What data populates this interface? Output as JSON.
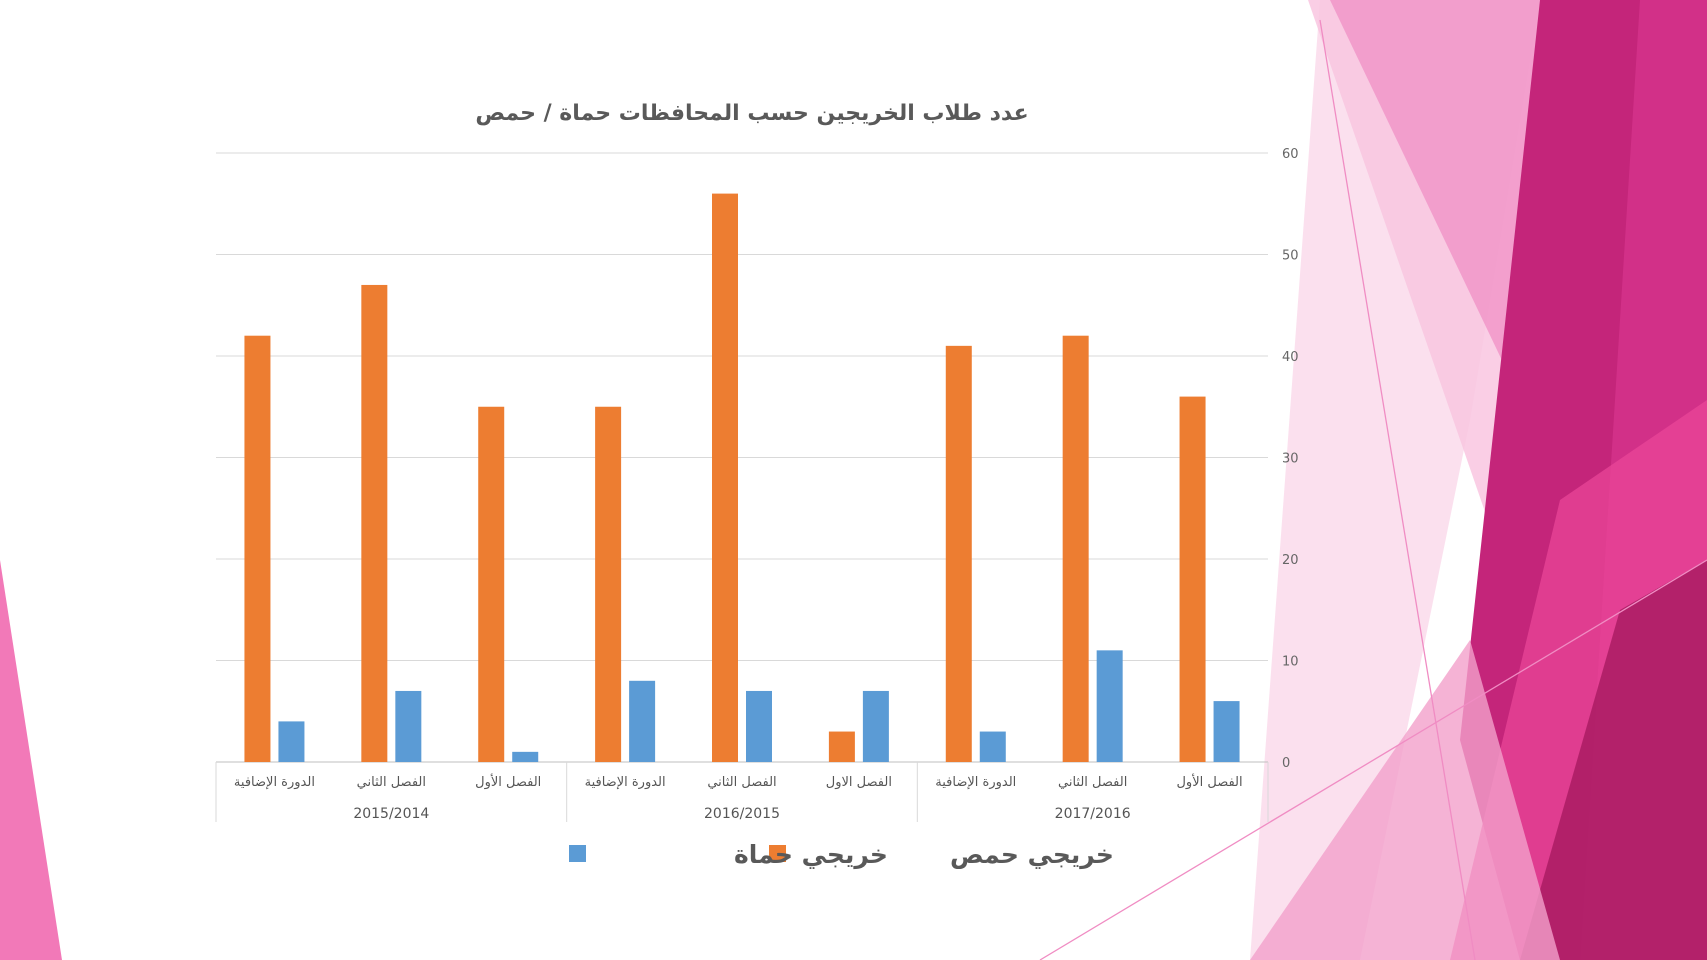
{
  "colors": {
    "homs": "#ED7D31",
    "hama": "#5B9BD5",
    "grid": "#D9D9D9",
    "text": "#595959"
  },
  "chart_data": {
    "type": "bar",
    "title": "عدد طلاب الخريجين حسب المحافظات حماة / حمص",
    "x_direction": "right-to-left",
    "groups": [
      {
        "label": "2017/2016",
        "categories": [
          "الفصل الأول",
          "الفصل الثاني",
          "الدورة الإضافية"
        ]
      },
      {
        "label": "2016/2015",
        "categories": [
          "الفصل الاول",
          "الفصل الثاني",
          "الدورة الإضافية"
        ]
      },
      {
        "label": "2015/2014",
        "categories": [
          "الفصل الأول",
          "الفصل الثاني",
          "الدورة الإضافية"
        ]
      }
    ],
    "series": [
      {
        "name": "خريجي حمص",
        "color": "#ED7D31",
        "values": [
          36,
          42,
          41,
          3,
          56,
          35,
          35,
          47,
          42
        ]
      },
      {
        "name": "خريجي حماة",
        "color": "#5B9BD5",
        "values": [
          6,
          11,
          3,
          7,
          7,
          8,
          1,
          7,
          4
        ]
      }
    ],
    "ylim": [
      0,
      60
    ],
    "yticks": [
      0,
      10,
      20,
      30,
      40,
      50,
      60
    ],
    "y_axis_position": "right",
    "grid": true,
    "legend_position": "bottom"
  }
}
